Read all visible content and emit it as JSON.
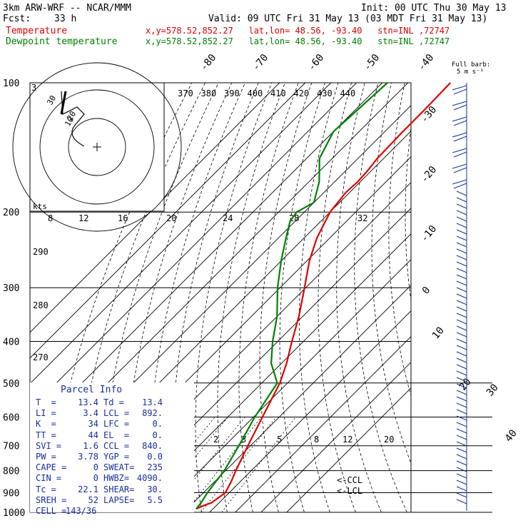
{
  "header": {
    "model": "3km ARW-WRF -- NCAR/MMM",
    "init": "Init: 00 UTC Thu 30 May 13",
    "fcst_label": "Fcst:",
    "fcst_value": "33 h",
    "valid": "Valid: 09 UTC Fri 31 May 13 (03 MDT Fri 31 May 13)",
    "temp_label": "Temperature",
    "temp_loc": "x,y=578.52,852.27   lat,lon= 48.56, -93.40   stn=INL ,72747",
    "dew_label": "Dewpoint temperature",
    "dew_loc": "x,y=578.52,852.27   lat,lon= 48.56, -93.40   stn=INL ,72747"
  },
  "wind_barb_label": "Full barb:\n5 m s⁻¹",
  "hodograph": {
    "units": "kts",
    "ring_labels": [
      "10",
      "20",
      "30"
    ],
    "speed_ticks": [
      "8",
      "12",
      "16",
      "20",
      "24",
      "28",
      "32"
    ],
    "corner_label": "3"
  },
  "parcel_info": {
    "title": "Parcel Info",
    "rows": [
      [
        "T  =",
        "13.4",
        "Td =",
        "13.4"
      ],
      [
        "LI =",
        "3.4",
        "LCL =",
        "892."
      ],
      [
        "K  =",
        "34",
        "LFC =",
        "0."
      ],
      [
        "TT =",
        "44",
        "EL  =",
        "0."
      ],
      [
        "SVI =",
        "1.6",
        "CCL =",
        "840."
      ],
      [
        "PW =",
        "3.78",
        "YGP =",
        "0.0"
      ],
      [
        "CAPE =",
        "0",
        "SWEAT=",
        "235"
      ],
      [
        "CIN =",
        "0",
        "HWBZ=",
        "4090."
      ],
      [
        "Tc =",
        "22.1",
        "SHEAR=",
        "30."
      ],
      [
        "SREH =",
        "52",
        "LAPSE=",
        "5.5"
      ],
      [
        "CELL =",
        "143/36",
        "",
        ""
      ]
    ]
  },
  "level_markers": [
    "<-CCL",
    "<-LCL"
  ],
  "chart_data": {
    "type": "line",
    "title": "",
    "y_axis": "Pressure (hPa)",
    "y_scale": "log",
    "ylim": [
      1000,
      100
    ],
    "pressure_ticks": [
      100,
      200,
      300,
      400,
      500,
      600,
      700,
      800,
      900,
      1000
    ],
    "isotherm_labels": [
      "-80",
      "-70",
      "-60",
      "-50",
      "-40",
      "-30",
      "-20",
      "-10",
      "0",
      "10",
      "20",
      "30",
      "40"
    ],
    "theta_labels": [
      "370",
      "380",
      "390",
      "400",
      "410",
      "420",
      "430",
      "440"
    ],
    "theta_e_labels": [
      "290",
      "280",
      "270"
    ],
    "mixing_ratio_labels": [
      "2",
      "3",
      "5",
      "8",
      "12",
      "20"
    ],
    "series": [
      {
        "name": "Temperature",
        "color": "#e00000",
        "points": [
          [
            982,
            13.4
          ],
          [
            965,
            15.0
          ],
          [
            950,
            17.0
          ],
          [
            900,
            18.5
          ],
          [
            850,
            16.5
          ],
          [
            800,
            14.0
          ],
          [
            700,
            9.0
          ],
          [
            600,
            3.5
          ],
          [
            500,
            -3.0
          ],
          [
            450,
            -8.0
          ],
          [
            400,
            -14.5
          ],
          [
            350,
            -21.5
          ],
          [
            300,
            -30.5
          ],
          [
            260,
            -39.0
          ],
          [
            230,
            -45.0
          ],
          [
            200,
            -50.0
          ],
          [
            180,
            -51.5
          ],
          [
            170,
            -51.0
          ],
          [
            160,
            -51.5
          ],
          [
            150,
            -52.5
          ],
          [
            130,
            -53.0
          ],
          [
            115,
            -53.0
          ],
          [
            100,
            -53.5
          ]
        ]
      },
      {
        "name": "Dewpoint temperature",
        "color": "#008000",
        "points": [
          [
            982,
            13.4
          ],
          [
            950,
            13.0
          ],
          [
            900,
            11.5
          ],
          [
            850,
            10.5
          ],
          [
            800,
            9.5
          ],
          [
            700,
            5.5
          ],
          [
            600,
            0.5
          ],
          [
            500,
            -4.0
          ],
          [
            450,
            -14.0
          ],
          [
            400,
            -22.0
          ],
          [
            350,
            -30.0
          ],
          [
            300,
            -41.0
          ],
          [
            260,
            -50.0
          ],
          [
            230,
            -57.0
          ],
          [
            210,
            -62.0
          ],
          [
            200,
            -63.0
          ],
          [
            190,
            -60.0
          ],
          [
            170,
            -66.0
          ],
          [
            150,
            -75.0
          ],
          [
            130,
            -80.0
          ],
          [
            115,
            -79.0
          ],
          [
            100,
            -78.0
          ]
        ]
      }
    ]
  },
  "colors": {
    "grid_blue": "#1a2f9c",
    "temperature": "#e00000",
    "dewpoint": "#008000"
  }
}
